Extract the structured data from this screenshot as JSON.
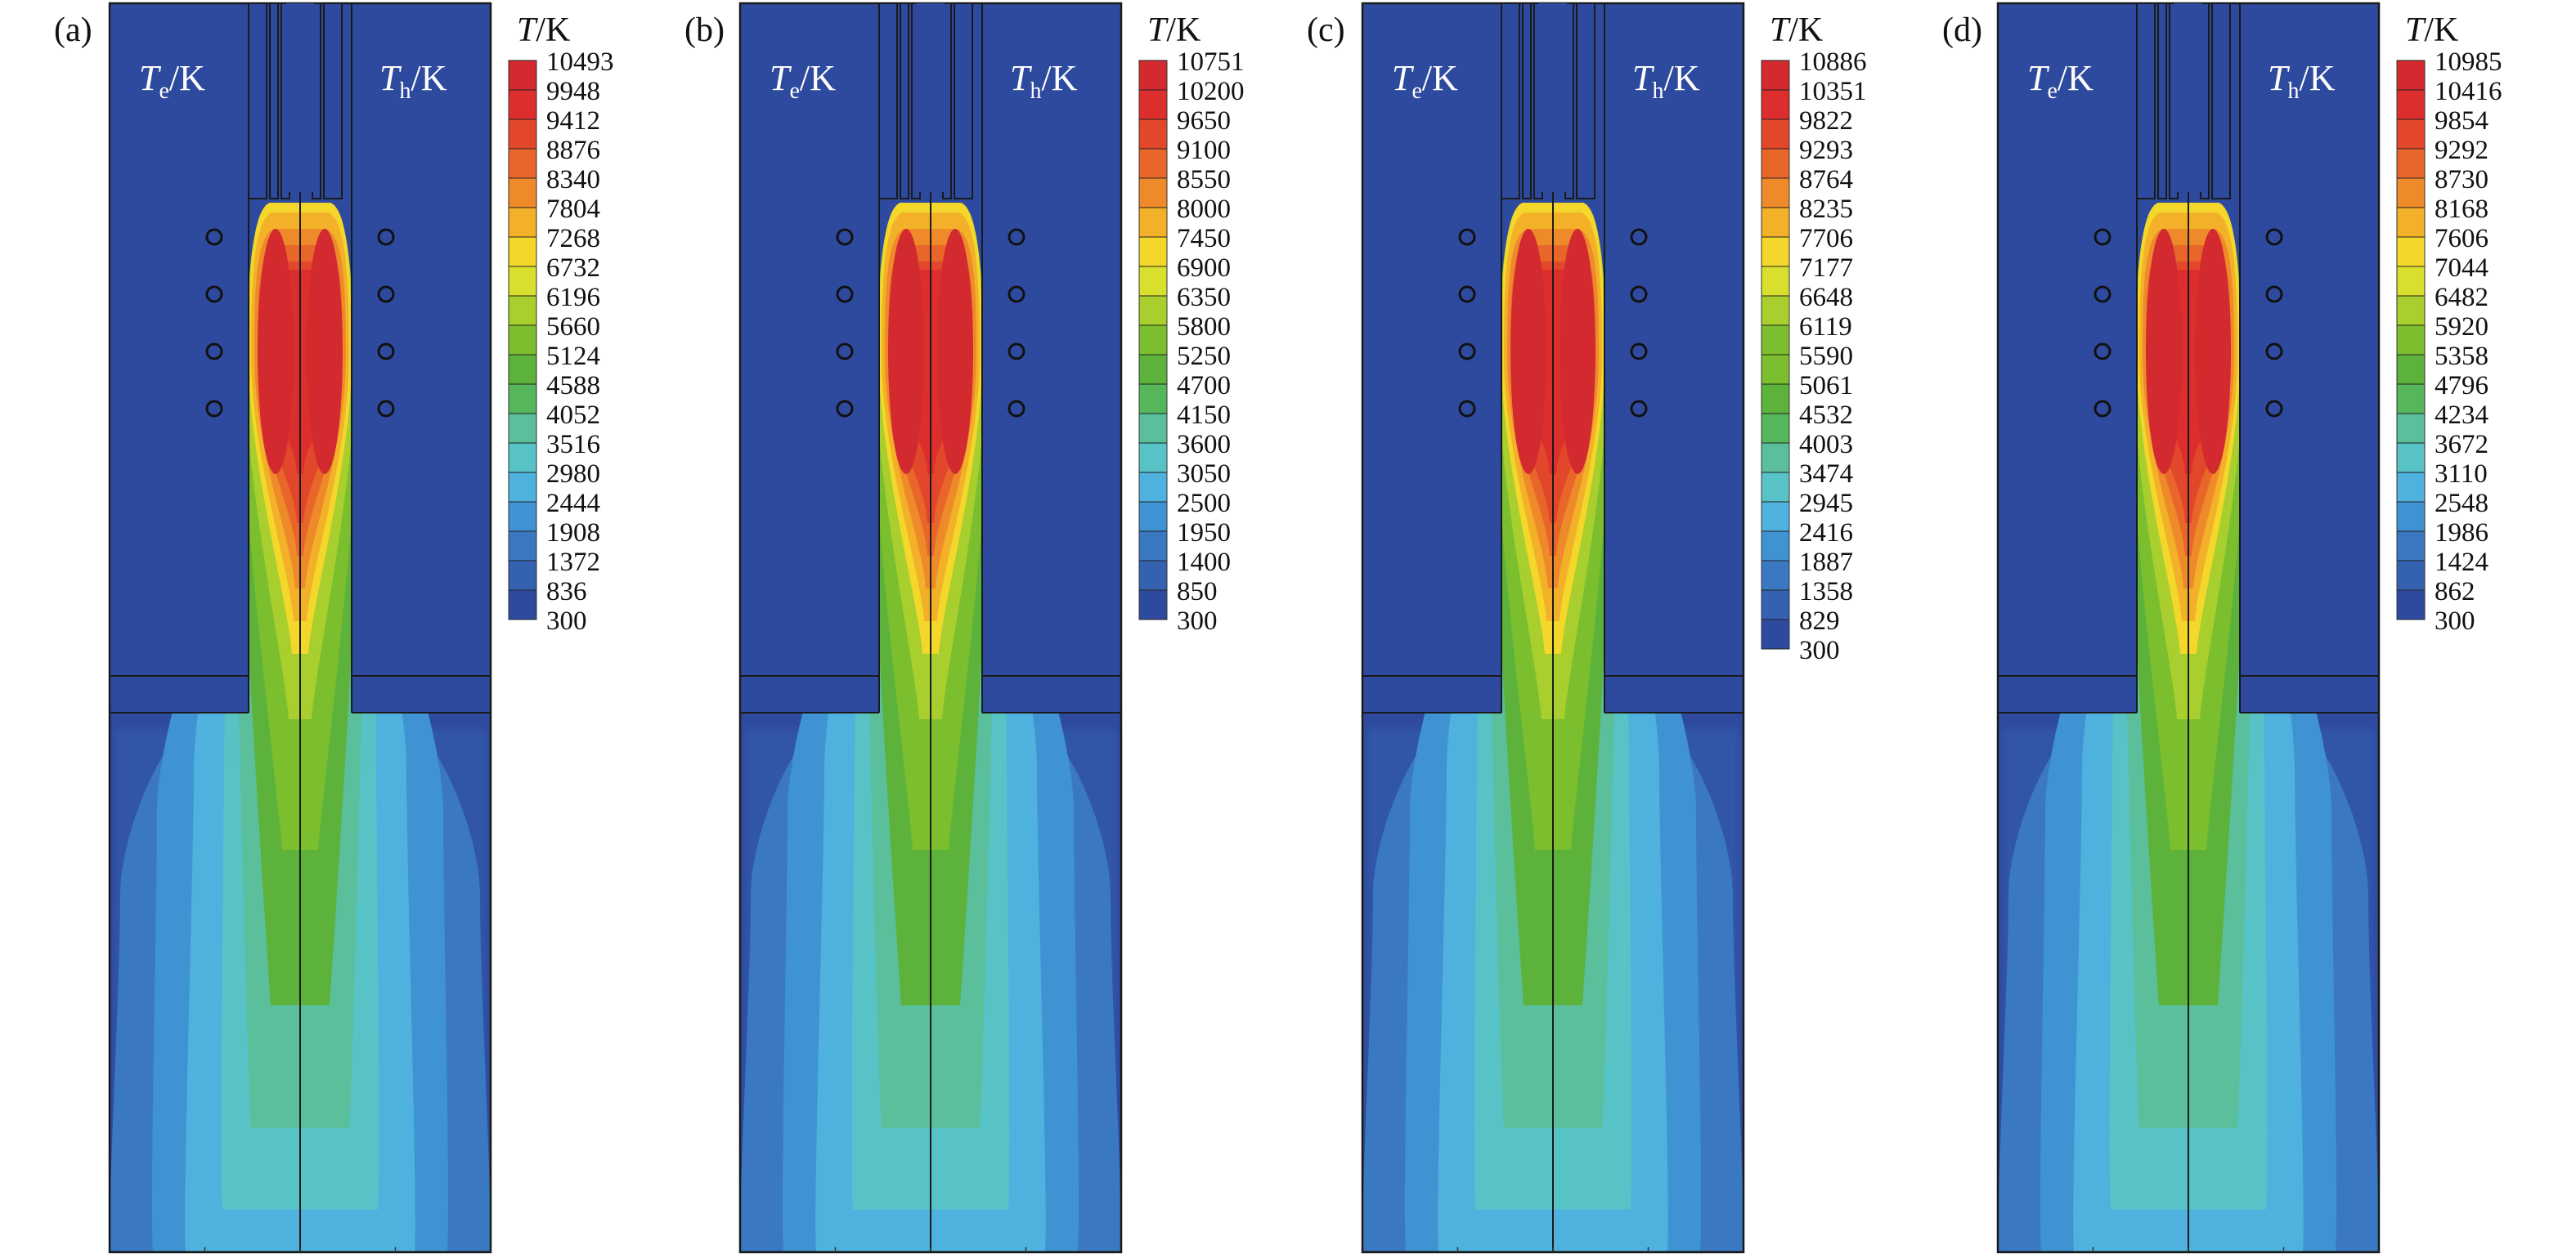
{
  "figure": {
    "colorbar_title": "T/K",
    "left_field_label": {
      "symbol": "T",
      "subscript": "e",
      "unit": "/K"
    },
    "right_field_label": {
      "symbol": "T",
      "subscript": "h",
      "unit": "/K"
    },
    "colors": [
      "#2e4a9e",
      "#3561b1",
      "#3b78c2",
      "#3f93d3",
      "#4fb1de",
      "#58c3c7",
      "#5abf9a",
      "#56b65c",
      "#5cb23a",
      "#7cbf2e",
      "#a8cf2e",
      "#d8df2d",
      "#f4d72b",
      "#f3b12a",
      "#ef8a2a",
      "#e8662a",
      "#e2472b",
      "#dc2f2d",
      "#d22a2f"
    ]
  },
  "chart_data": [
    {
      "type": "heatmap",
      "panel_label": "(a)",
      "legend_title": "T/K",
      "colorbar_ticks": [
        10493,
        9948,
        9412,
        8876,
        8340,
        7804,
        7268,
        6732,
        6196,
        5660,
        5124,
        4588,
        4052,
        3516,
        2980,
        2444,
        1908,
        1372,
        836,
        300
      ],
      "tmax": 10493,
      "tmin": 300
    },
    {
      "type": "heatmap",
      "panel_label": "(b)",
      "legend_title": "T/K",
      "colorbar_ticks": [
        10751,
        10200,
        9650,
        9100,
        8550,
        8000,
        7450,
        6900,
        6350,
        5800,
        5250,
        4700,
        4150,
        3600,
        3050,
        2500,
        1950,
        1400,
        850,
        300
      ],
      "tmax": 10751,
      "tmin": 300
    },
    {
      "type": "heatmap",
      "panel_label": "(c)",
      "legend_title": "T/K",
      "colorbar_ticks": [
        10886,
        10351,
        9822,
        9293,
        8764,
        8235,
        7706,
        7177,
        6648,
        6119,
        5590,
        5061,
        4532,
        4003,
        3474,
        2945,
        2416,
        1887,
        1358,
        829,
        300
      ],
      "tmax": 10886,
      "tmin": 300
    },
    {
      "type": "heatmap",
      "panel_label": "(d)",
      "legend_title": "T/K",
      "colorbar_ticks": [
        10985,
        10416,
        9854,
        9292,
        8730,
        8168,
        7606,
        7044,
        6482,
        5920,
        5358,
        4796,
        4234,
        3672,
        3110,
        2548,
        1986,
        1424,
        862,
        300
      ],
      "tmax": 10985,
      "tmin": 300
    }
  ]
}
